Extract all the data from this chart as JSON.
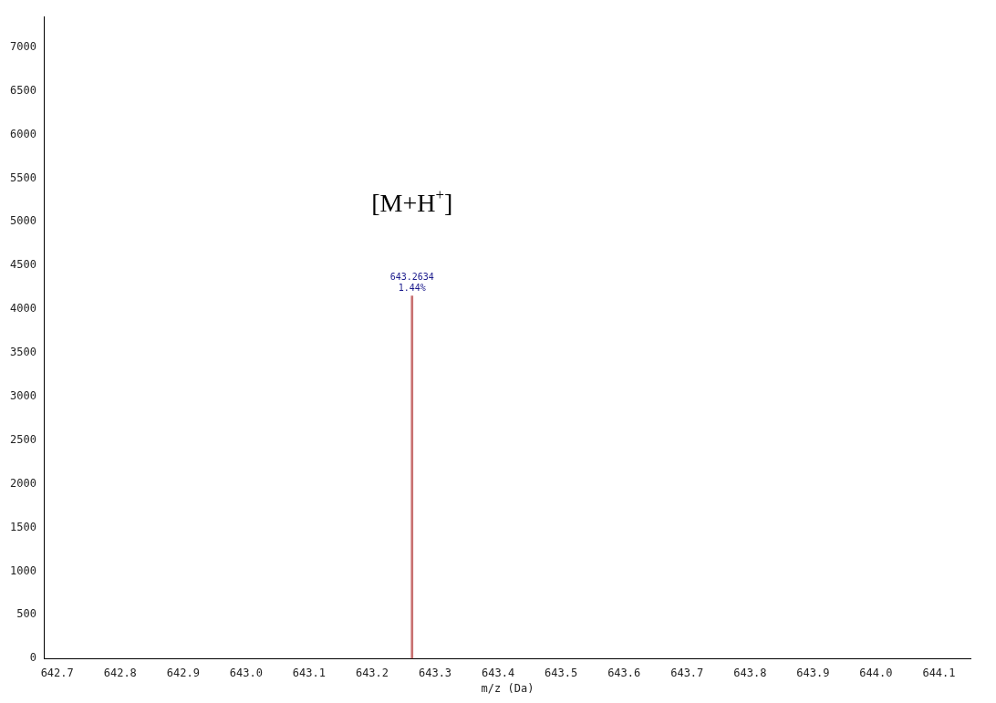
{
  "chart_data": {
    "type": "bar",
    "xlabel": "m/z (Da)",
    "x": [
      643.2634
    ],
    "values": [
      4150
    ],
    "color": "#c87070",
    "xlim": [
      642.68,
      644.15
    ],
    "xticks": [
      {
        "value": 642.7,
        "label": "642.7"
      },
      {
        "value": 642.8,
        "label": "642.8"
      },
      {
        "value": 642.9,
        "label": "642.9"
      },
      {
        "value": 643.0,
        "label": "643.0"
      },
      {
        "value": 643.1,
        "label": "643.1"
      },
      {
        "value": 643.2,
        "label": "643.2"
      },
      {
        "value": 643.3,
        "label": "643.3"
      },
      {
        "value": 643.4,
        "label": "643.4"
      },
      {
        "value": 643.5,
        "label": "643.5"
      },
      {
        "value": 643.6,
        "label": "643.6"
      },
      {
        "value": 643.7,
        "label": "643.7"
      },
      {
        "value": 643.8,
        "label": "643.8"
      },
      {
        "value": 643.9,
        "label": "643.9"
      },
      {
        "value": 644.0,
        "label": "644.0"
      },
      {
        "value": 644.1,
        "label": "644.1"
      }
    ],
    "ylim": [
      0,
      7350
    ],
    "yticks": [
      0,
      500,
      1000,
      1500,
      2000,
      2500,
      3000,
      3500,
      4000,
      4500,
      5000,
      5500,
      6000,
      6500,
      7000
    ],
    "annotations": [
      {
        "text": "643.2634\n1.44%",
        "x": 643.2634,
        "y": 4150
      },
      "[M+H$^{+}$]"
    ],
    "grid": false,
    "legend": false
  }
}
